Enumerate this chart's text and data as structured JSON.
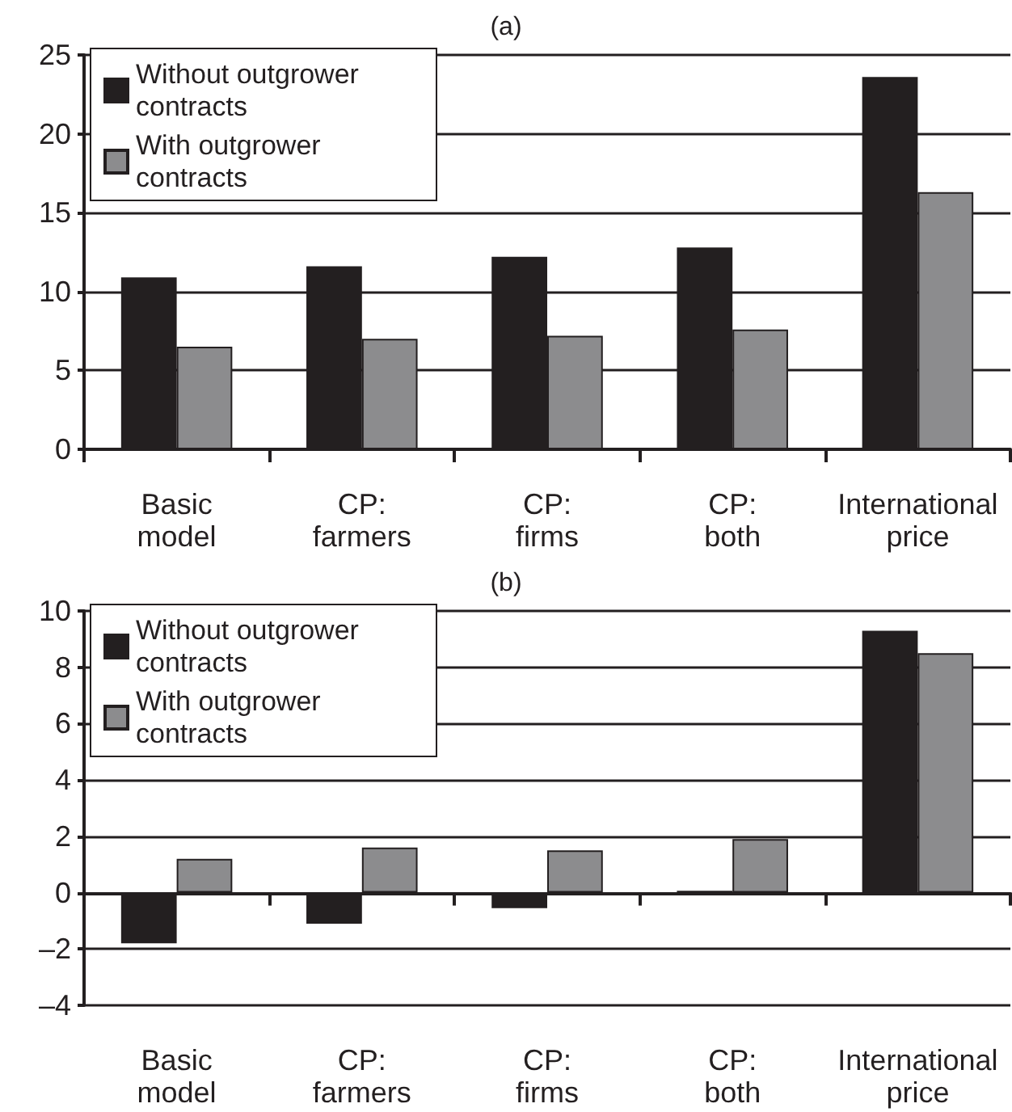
{
  "chart_data": [
    {
      "type": "bar",
      "title": "(a)",
      "categories": [
        "Basic\nmodel",
        "CP:\nfarmers",
        "CP:\nfirms",
        "CP:\nboth",
        "International\nprice"
      ],
      "series": [
        {
          "name": "Without outgrower contracts",
          "color": "#231f20",
          "values": [
            10.9,
            11.6,
            12.2,
            12.8,
            23.6
          ]
        },
        {
          "name": "With outgrower contracts",
          "color": "#8c8c8e",
          "values": [
            6.5,
            7.0,
            7.2,
            7.6,
            16.3
          ]
        }
      ],
      "ylim": [
        0,
        25
      ],
      "yticks": [
        0,
        5,
        10,
        15,
        20,
        25
      ],
      "grid": "y",
      "legend": "top left"
    },
    {
      "type": "bar",
      "title": "(b)",
      "categories": [
        "Basic\nmodel",
        "CP:\nfarmers",
        "CP:\nfirms",
        "CP:\nboth",
        "International\nprice"
      ],
      "series": [
        {
          "name": "Without outgrower contracts",
          "color": "#231f20",
          "values": [
            -1.8,
            -1.1,
            -0.55,
            0.07,
            9.3
          ]
        },
        {
          "name": "With outgrower contracts",
          "color": "#8c8c8e",
          "values": [
            1.2,
            1.6,
            1.5,
            1.9,
            8.5
          ]
        }
      ],
      "ylim": [
        -4,
        10
      ],
      "yticks": [
        {
          "value": -4,
          "label": "–4"
        },
        {
          "value": -2,
          "label": "–2"
        },
        0,
        2,
        4,
        6,
        8,
        10
      ],
      "grid": "y",
      "legend": "top left"
    }
  ]
}
